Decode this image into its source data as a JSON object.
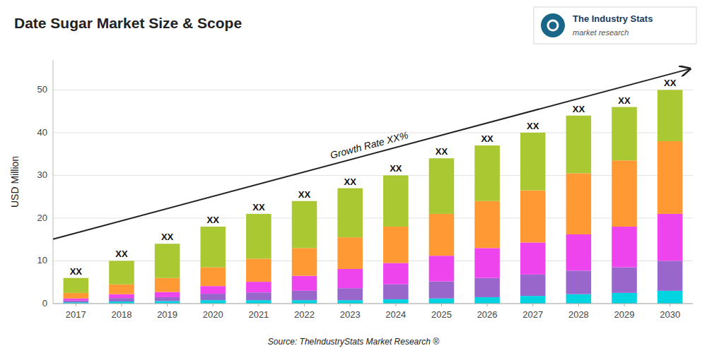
{
  "chart_data": {
    "type": "bar",
    "stacked": true,
    "title": "Date Sugar Market Size & Scope",
    "y_label": "USD Million",
    "source": "Source: TheIndustryStats Market Research ®",
    "logo": [
      "The Industry Stats",
      "market research"
    ],
    "categories": [
      "2017",
      "2018",
      "2019",
      "2020",
      "2021",
      "2022",
      "2023",
      "2024",
      "2025",
      "2026",
      "2027",
      "2028",
      "2029",
      "2030"
    ],
    "series": [
      {
        "color": "#00d4e0",
        "values": [
          0.3,
          0.5,
          0.6,
          0.8,
          0.8,
          0.8,
          0.8,
          1.0,
          1.2,
          1.5,
          1.8,
          2.2,
          2.5,
          3.0
        ]
      },
      {
        "color": "#9966cc",
        "values": [
          0.4,
          0.8,
          0.9,
          1.5,
          1.8,
          2.2,
          2.8,
          3.5,
          4.0,
          4.5,
          5.0,
          5.5,
          6.0,
          7.0
        ]
      },
      {
        "color": "#ee44ee",
        "values": [
          0.5,
          0.9,
          1.2,
          1.8,
          2.5,
          3.5,
          4.5,
          5.0,
          6.0,
          7.0,
          7.5,
          8.5,
          9.5,
          11.0
        ]
      },
      {
        "color": "#ff9933",
        "values": [
          1.3,
          2.3,
          3.3,
          4.4,
          5.4,
          6.5,
          7.4,
          8.5,
          9.8,
          11.0,
          12.2,
          14.3,
          15.5,
          17.0
        ]
      },
      {
        "color": "#aac832",
        "values": [
          3.5,
          5.5,
          8.0,
          9.5,
          10.5,
          11.0,
          11.5,
          12.0,
          13.0,
          13.0,
          13.5,
          13.5,
          12.5,
          12.0
        ]
      }
    ],
    "bar_labels": [
      "XX",
      "XX",
      "XX",
      "XX",
      "XX",
      "XX",
      "XX",
      "XX",
      "XX",
      "XX",
      "XX",
      "XX",
      "XX",
      "XX"
    ],
    "annotations": [
      "Growth Rate XX%"
    ],
    "ylim": [
      0,
      57
    ],
    "yticks": [
      0,
      10,
      20,
      30,
      40,
      50
    ],
    "grid": true
  }
}
